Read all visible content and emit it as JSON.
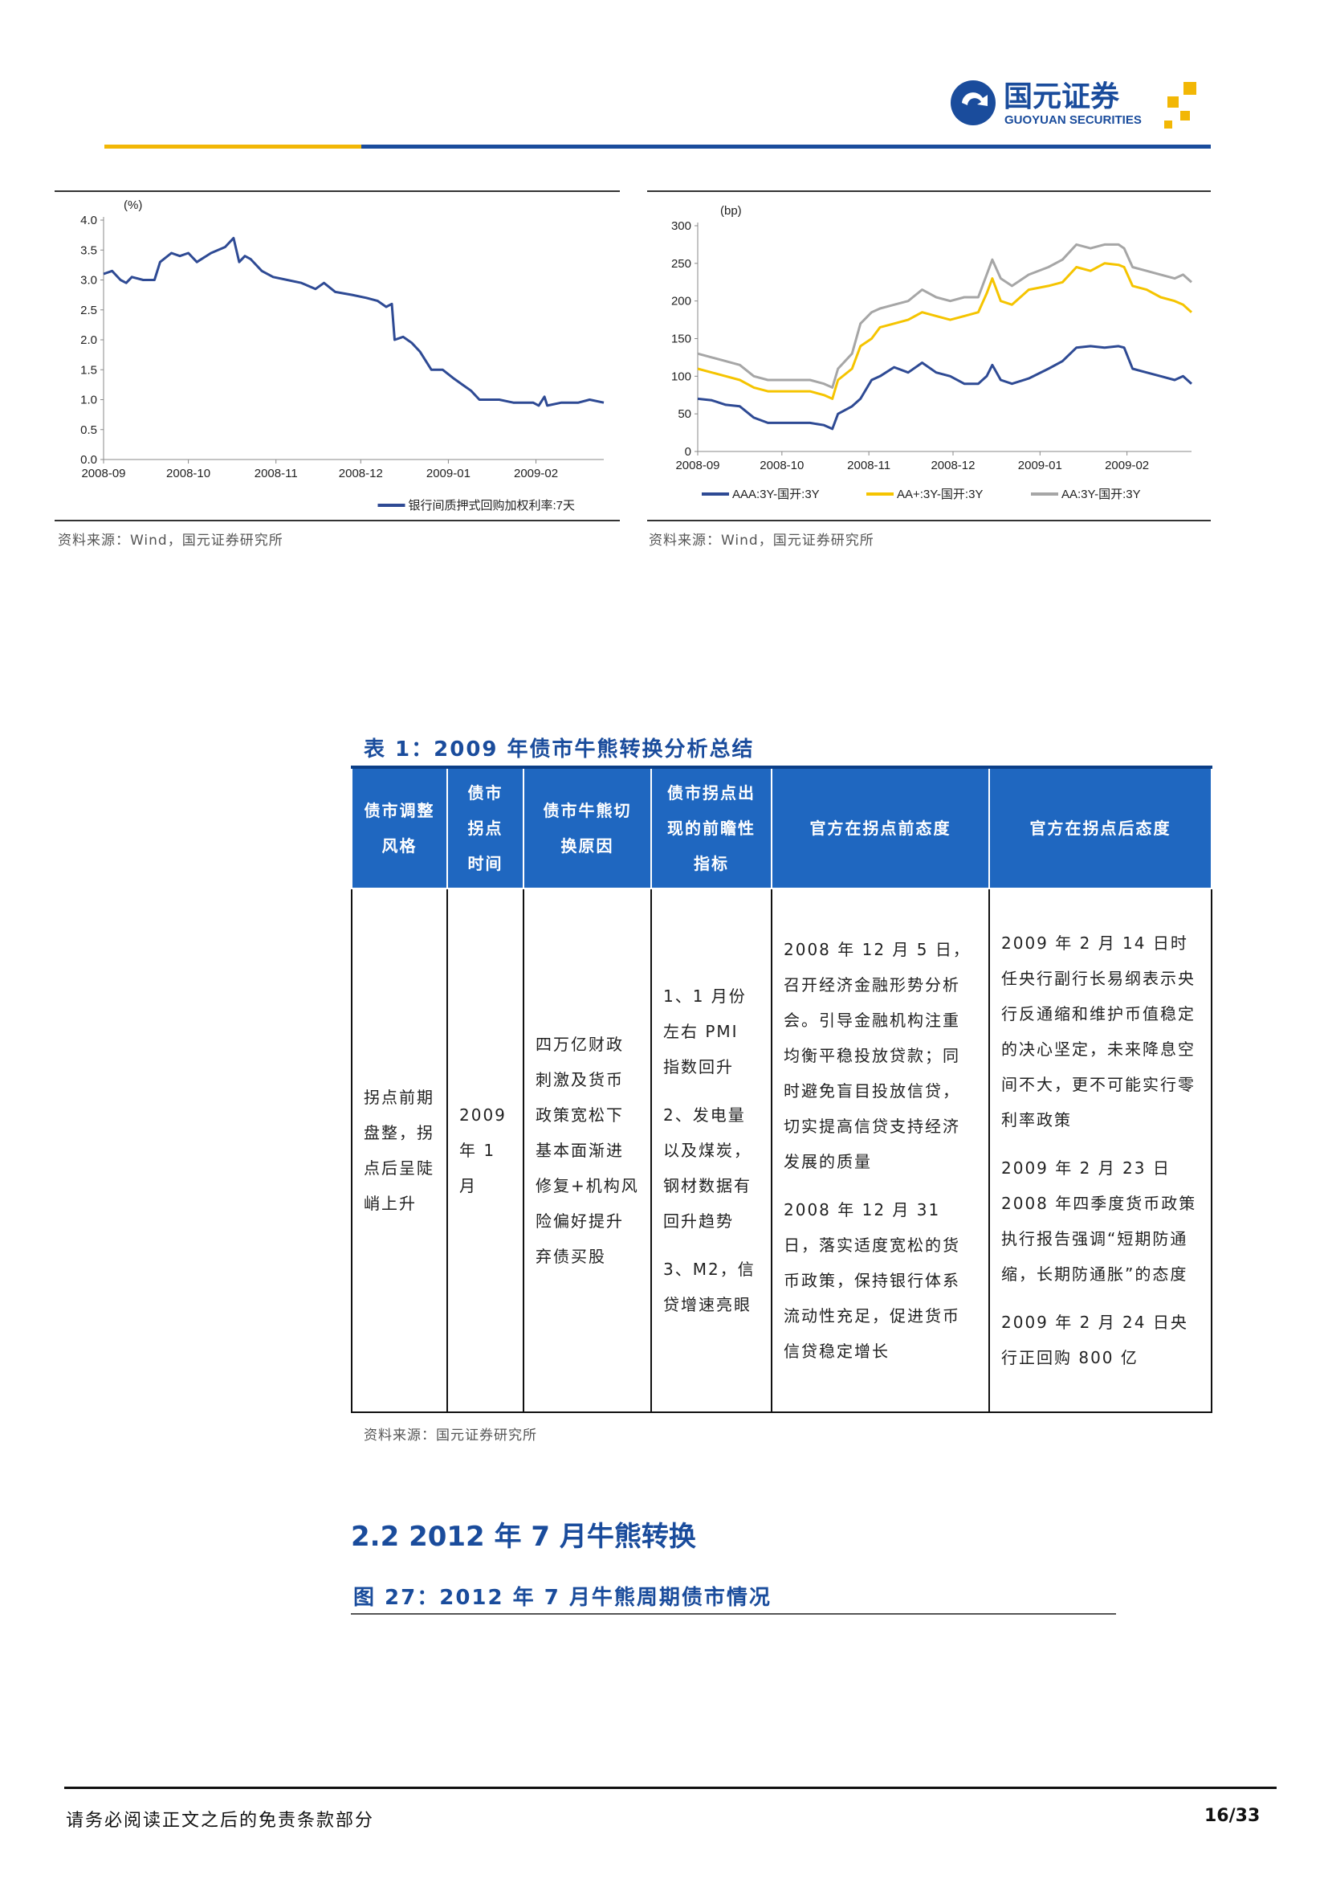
{
  "header": {
    "logo_cn": "国元证券",
    "logo_en": "GUOYUAN SECURITIES"
  },
  "chart_data": [
    {
      "type": "line",
      "unit": "(%)",
      "xlim": [
        0,
        177
      ],
      "ylim": [
        0,
        4
      ],
      "xticks": [
        {
          "value": 0,
          "label": "2008-09"
        },
        {
          "value": 30,
          "label": "2008-10"
        },
        {
          "value": 61,
          "label": "2008-11"
        },
        {
          "value": 91,
          "label": "2008-12"
        },
        {
          "value": 122,
          "label": "2009-01"
        },
        {
          "value": 153,
          "label": "2009-02"
        }
      ],
      "yticks": [
        {
          "value": 0,
          "label": "0.0"
        },
        0.5,
        {
          "value": 1,
          "label": "1.0"
        },
        1.5,
        {
          "value": 2,
          "label": "2.0"
        },
        2.5,
        {
          "value": 3,
          "label": "3.0"
        },
        3.5,
        {
          "value": 4,
          "label": "4.0"
        }
      ],
      "x": [
        0,
        3,
        6,
        8,
        10,
        14,
        18,
        20,
        24,
        27,
        30,
        33,
        38,
        43,
        46,
        48,
        50,
        52,
        56,
        60,
        65,
        70,
        75,
        78,
        82,
        88,
        93,
        97,
        100,
        102,
        103,
        106,
        109,
        112,
        116,
        120,
        124,
        127,
        130,
        133,
        140,
        145,
        152,
        154,
        156,
        157,
        162,
        168,
        172,
        177
      ],
      "series": [
        {
          "name": "银行间质押式回购加权利率:7天",
          "color": "#2e4a94",
          "values": [
            3.1,
            3.15,
            3.0,
            2.95,
            3.05,
            3.0,
            3.0,
            3.3,
            3.45,
            3.4,
            3.45,
            3.3,
            3.45,
            3.55,
            3.7,
            3.3,
            3.4,
            3.35,
            3.15,
            3.05,
            3.0,
            2.95,
            2.85,
            2.95,
            2.8,
            2.75,
            2.7,
            2.65,
            2.55,
            2.6,
            2.0,
            2.05,
            1.95,
            1.8,
            1.5,
            1.5,
            1.35,
            1.25,
            1.15,
            1.0,
            1.0,
            0.95,
            0.95,
            0.9,
            1.05,
            0.9,
            0.95,
            0.95,
            1.0,
            0.95
          ]
        }
      ]
    },
    {
      "type": "line",
      "unit": "(bp)",
      "xlim": [
        0,
        176
      ],
      "ylim": [
        0,
        300
      ],
      "xticks": [
        {
          "value": 0,
          "label": "2008-09"
        },
        {
          "value": 30,
          "label": "2008-10"
        },
        {
          "value": 61,
          "label": "2008-11"
        },
        {
          "value": 91,
          "label": "2008-12"
        },
        {
          "value": 122,
          "label": "2009-01"
        },
        {
          "value": 153,
          "label": "2009-02"
        }
      ],
      "yticks": [
        0,
        50,
        100,
        150,
        200,
        250,
        300
      ],
      "x": [
        0,
        5,
        10,
        15,
        20,
        25,
        30,
        40,
        45,
        48,
        50,
        55,
        58,
        62,
        65,
        70,
        75,
        80,
        85,
        90,
        95,
        100,
        103,
        105,
        108,
        112,
        118,
        125,
        130,
        135,
        140,
        145,
        150,
        152,
        155,
        160,
        165,
        170,
        173,
        176
      ],
      "series": [
        {
          "name": "AAA:3Y-国开:3Y",
          "color": "#2e4a94",
          "values": [
            70,
            68,
            62,
            60,
            45,
            38,
            38,
            38,
            35,
            30,
            50,
            60,
            70,
            95,
            100,
            112,
            105,
            118,
            105,
            100,
            90,
            90,
            100,
            115,
            95,
            90,
            97,
            110,
            120,
            138,
            140,
            138,
            140,
            138,
            110,
            105,
            100,
            95,
            100,
            90
          ]
        },
        {
          "name": "AA+:3Y-国开:3Y",
          "color": "#f5c400",
          "values": [
            110,
            105,
            100,
            95,
            85,
            80,
            80,
            80,
            75,
            70,
            95,
            110,
            140,
            150,
            165,
            170,
            175,
            185,
            180,
            175,
            180,
            185,
            210,
            230,
            200,
            195,
            215,
            220,
            225,
            245,
            240,
            250,
            248,
            245,
            220,
            215,
            205,
            200,
            195,
            185
          ]
        },
        {
          "name": "AA:3Y-国开:3Y",
          "color": "#a6a6a6",
          "values": [
            130,
            125,
            120,
            115,
            100,
            95,
            95,
            95,
            90,
            85,
            110,
            130,
            170,
            185,
            190,
            195,
            200,
            215,
            205,
            200,
            205,
            205,
            235,
            255,
            230,
            220,
            235,
            245,
            255,
            275,
            270,
            275,
            275,
            270,
            245,
            240,
            235,
            230,
            235,
            225
          ]
        }
      ]
    }
  ],
  "sources": [
    "资料来源：Wind，国元证券研究所",
    "资料来源：Wind，国元证券研究所"
  ],
  "table": {
    "title": "表 1：2009 年债市牛熊转换分析总结",
    "header": [
      "债市调整风格",
      "债市拐点时间",
      "债市牛熊切换原因",
      "债市拐点出现的前瞻性指标",
      "官方在拐点前态度",
      "官方在拐点后态度"
    ],
    "rows": [
      [
        [
          "拐点前期盘整，拐点后呈陡峭上升"
        ],
        [
          "2009 年 1 月"
        ],
        [
          "四万亿财政刺激及货币政策宽松下基本面渐进修复+机构风险偏好提升弃债买股"
        ],
        [
          "1、1 月份左右 PMI 指数回升",
          "2、发电量以及煤炭，钢材数据有回升趋势",
          "3、M2，信贷增速亮眼"
        ],
        [
          "2008 年 12 月 5 日，召开经济金融形势分析会。引导金融机构注重均衡平稳投放贷款；同时避免盲目投放信贷，切实提高信贷支持经济发展的质量",
          "2008 年 12 月 31 日，落实适度宽松的货币政策，保持银行体系流动性充足，促进货币信贷稳定增长"
        ],
        [
          "2009 年 2 月 14 日时任央行副行长易纲表示央行反通缩和维护币值稳定的决心坚定，未来降息空间不大，更不可能实行零利率政策",
          "2009 年 2 月 23 日 2008 年四季度货币政策执行报告强调“短期防通缩，长期防通胀”的态度",
          "2009 年 2 月 24 日央行正回购 800 亿"
        ]
      ]
    ],
    "source": "资料来源：国元证券研究所"
  },
  "section_heading": "2.2 2012 年 7 月牛熊转换",
  "figure_title": "图 27：2012 年 7 月牛熊周期债市情况",
  "footer": {
    "disclaimer": "请务必阅读正文之后的免责条款部分",
    "page": "16/33"
  }
}
